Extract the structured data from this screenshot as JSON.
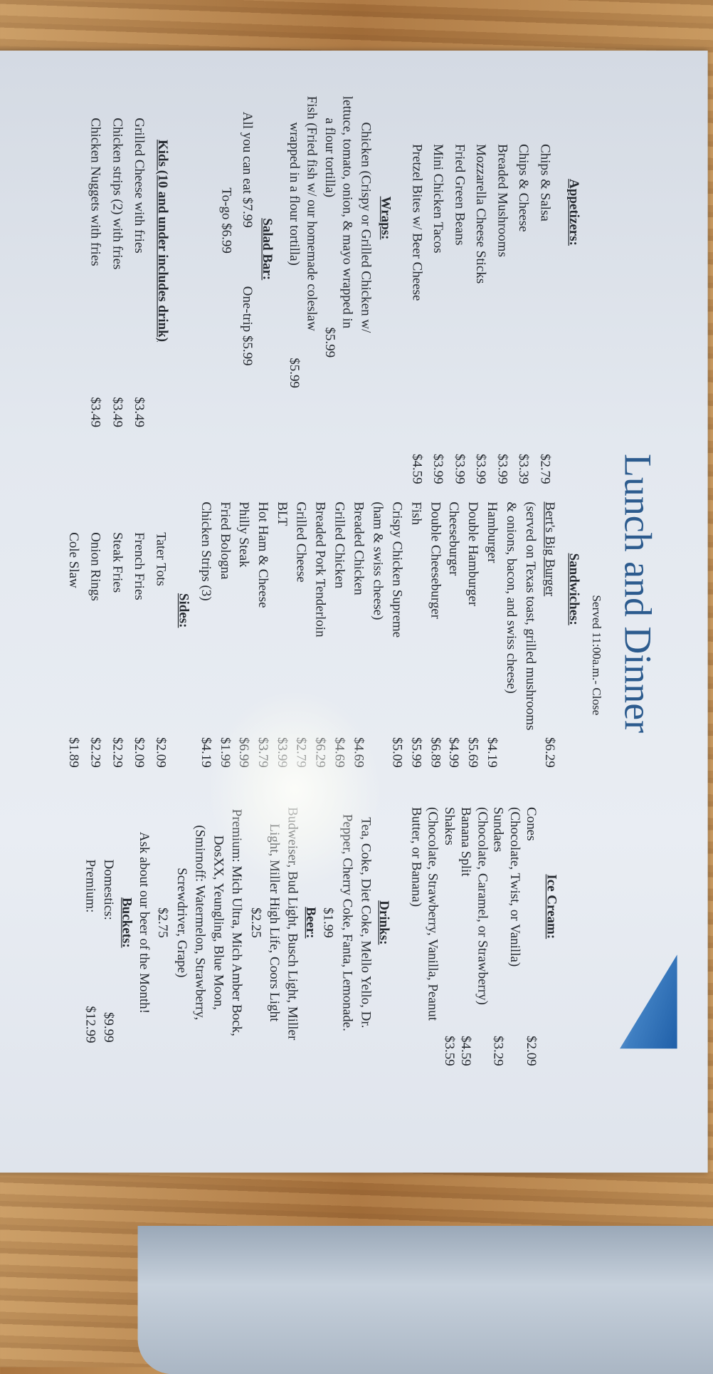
{
  "menu": {
    "title": "Lunch and Dinner",
    "served": "Served 11:00a.m.- Close",
    "appetizers": {
      "heading": "Appetizers:",
      "items": [
        {
          "name": "Chips & Salsa",
          "price": "$2.79"
        },
        {
          "name": "Chips & Cheese",
          "price": "$3.39"
        },
        {
          "name": "Breaded Mushrooms",
          "price": "$3.99"
        },
        {
          "name": "Mozzarella Cheese Sticks",
          "price": "$3.99"
        },
        {
          "name": "Fried Green Beans",
          "price": "$3.99"
        },
        {
          "name": "Mini Chicken Tacos",
          "price": "$3.99"
        },
        {
          "name": "Pretzel Bites w/ Beer Cheese",
          "price": "$4.59"
        }
      ]
    },
    "wraps": {
      "heading": "Wraps:",
      "chicken_lines": [
        "Chicken (Crispy or Grilled Chicken w/",
        "lettuce, tomato, onion, & mayo wrapped in",
        "a flour tortilla)"
      ],
      "chicken_price": "$5.99",
      "fish_lines": [
        "Fish (Fried fish w/ our homemade coleslaw",
        "wrapped in a flour tortilla)"
      ],
      "fish_price": "$5.99"
    },
    "salad_bar": {
      "heading": "Salad Bar:",
      "all_you_can_eat": "All you can eat $7.99",
      "one_trip": "One-trip $5.99",
      "to_go": "To-go $6.99"
    },
    "kids": {
      "heading": "Kids (10 and under includes drink)",
      "items": [
        {
          "name": "Grilled Cheese with fries",
          "price": "$3.49"
        },
        {
          "name": "Chicken strips (2) with fries",
          "price": "$3.49"
        },
        {
          "name": "Chicken Nuggets with fries",
          "price": "$3.49"
        }
      ]
    },
    "sandwiches": {
      "heading": "Sandwiches:",
      "items": [
        {
          "name": "Bert's Big Burger",
          "price": "$6.29"
        },
        {
          "name": "(served on Texas toast, grilled mushrooms",
          "price": ""
        },
        {
          "name": "& onions, bacon, and swiss cheese)",
          "price": ""
        },
        {
          "name": "Hamburger",
          "price": "$4.19"
        },
        {
          "name": "Double Hamburger",
          "price": "$5.69"
        },
        {
          "name": "Cheeseburger",
          "price": "$4.99"
        },
        {
          "name": "Double Cheeseburger",
          "price": "$6.89"
        },
        {
          "name": "Fish",
          "price": "$5.99"
        },
        {
          "name": "Crispy Chicken Supreme",
          "price": "$5.09"
        },
        {
          "name": "(ham & swiss cheese)",
          "price": ""
        },
        {
          "name": "Breaded Chicken",
          "price": "$4.69"
        },
        {
          "name": "Grilled Chicken",
          "price": "$4.69"
        },
        {
          "name": "Breaded Pork Tenderloin",
          "price": "$6.29"
        },
        {
          "name": "Grilled Cheese",
          "price": "$2.79"
        },
        {
          "name": "BLT",
          "price": "$3.99"
        },
        {
          "name": "Hot Ham & Cheese",
          "price": "$3.79"
        },
        {
          "name": "Philly Steak",
          "price": "$6.99"
        },
        {
          "name": "Fried Bologna",
          "price": "$1.99"
        },
        {
          "name": "Chicken Strips (3)",
          "price": "$4.19"
        }
      ]
    },
    "sides": {
      "heading": "Sides:",
      "items": [
        {
          "name": "Tater Tots",
          "price": "$2.09"
        },
        {
          "name": "French Fries",
          "price": "$2.09"
        },
        {
          "name": "Steak Fries",
          "price": "$2.29"
        },
        {
          "name": "Onion Rings",
          "price": "$2.29"
        },
        {
          "name": "Cole Slaw",
          "price": "$1.89"
        }
      ]
    },
    "ice_cream": {
      "heading": "Ice Cream:",
      "items": [
        {
          "name": "Cones",
          "price": "$2.09"
        },
        {
          "name": "(Chocolate, Twist, or Vanilla)",
          "price": ""
        },
        {
          "name": "Sundaes",
          "price": "$3.29"
        },
        {
          "name": "(Chocolate, Caramel, or Strawberry)",
          "price": ""
        },
        {
          "name": "Banana Split",
          "price": "$4.59"
        },
        {
          "name": "Shakes",
          "price": "$3.59"
        },
        {
          "name": "(Chocolate, Strawberry, Vanilla, Peanut",
          "price": ""
        },
        {
          "name": "Butter, or Banana)",
          "price": ""
        }
      ]
    },
    "drinks": {
      "heading": "Drinks:",
      "lines": [
        "Tea, Coke, Diet Coke, Mello Yello, Dr.",
        "Pepper, Cherry Coke, Fanta, Lemonade."
      ],
      "price": "$1.99"
    },
    "beer": {
      "heading": "Beer:",
      "domestic_lines": [
        "Budweiser, Bud Light, Busch Light, Miller",
        "Light, Miller High Life, Coors Light"
      ],
      "domestic_price": "$2.25",
      "premium_lines": [
        "Premium: Mich Ultra, Mich Amber Bock,",
        "DosXX, Yeungling, Blue Moon,",
        "(Smirnoff: Watermelon, Strawberry,",
        "Screwdriver, Grape)"
      ],
      "premium_price": "$2.75",
      "note": "Ask about our beer of the Month!"
    },
    "buckets": {
      "heading": "Buckets:",
      "items": [
        {
          "name": "Domestics:",
          "price": "$9.99"
        },
        {
          "name": "Premium:",
          "price": "$12.99"
        }
      ]
    }
  },
  "colors": {
    "title": "#2c5b8e",
    "accent_triangle": "#1f5fa8",
    "paper": "#e3e8ef",
    "wood": "#b5824a"
  },
  "icons": {
    "decoration": "blue-triangle"
  }
}
